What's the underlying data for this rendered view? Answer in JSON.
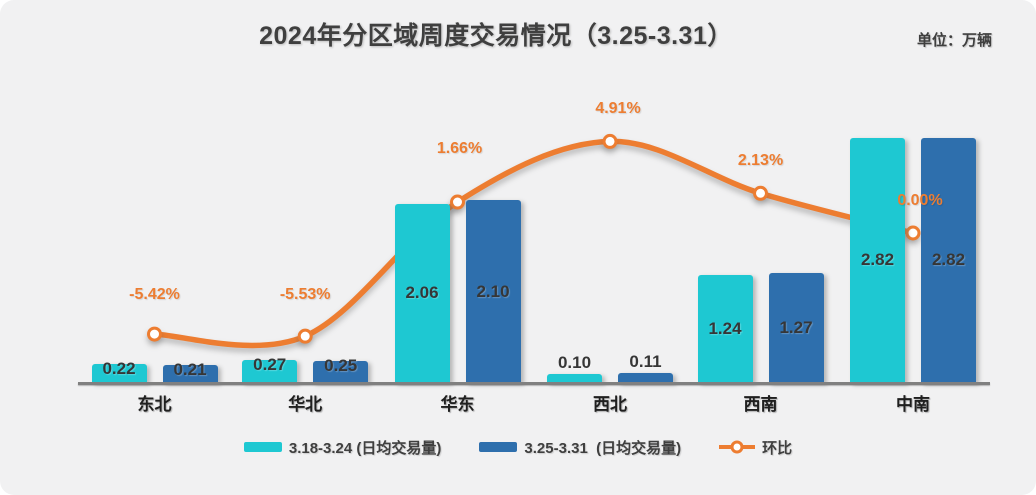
{
  "title": "2024年分区域周度交易情况（3.25-3.31）",
  "unit_label": "单位：万辆",
  "colors": {
    "background": "#F1F1F2",
    "bar_week1": "#1EC8D2",
    "bar_week2": "#2E6FAD",
    "line": "#ED7D31",
    "axis_line": "#808080",
    "title_text": "#3F3F3F",
    "value_label_text": "#363636"
  },
  "chart_data": {
    "type": "bar",
    "subtype": "grouped bars with overlaid smooth line (dual axis, pct on right)",
    "title": "2024年分区域周度交易情况（3.25-3.31）",
    "unit": "万辆",
    "categories": [
      "东北",
      "华北",
      "华东",
      "西北",
      "西南",
      "中南"
    ],
    "series": [
      {
        "name": "3.18-3.24 (日均交易量)",
        "type": "bar",
        "color": "#1EC8D2",
        "values": [
          0.22,
          0.27,
          2.06,
          0.1,
          1.24,
          2.82
        ],
        "labels": [
          "0.22",
          "0.27",
          "2.06",
          "0.10",
          "1.24",
          "2.82"
        ]
      },
      {
        "name": "3.25-3.31  (日均交易量)",
        "type": "bar",
        "color": "#2E6FAD",
        "values": [
          0.21,
          0.25,
          2.1,
          0.11,
          1.27,
          2.82
        ],
        "labels": [
          "0.21",
          "0.25",
          "2.10",
          "0.11",
          "1.27",
          "2.82"
        ]
      },
      {
        "name": "环比",
        "type": "line",
        "color": "#ED7D31",
        "marker": "circle-white-fill-orange-ring",
        "values_pct": [
          -5.42,
          -5.53,
          1.66,
          4.91,
          2.13,
          0.0
        ],
        "labels": [
          "-5.42%",
          "-5.53%",
          "1.66%",
          "4.91%",
          "2.13%",
          "0.00%"
        ]
      }
    ],
    "ylim_left": [
      0,
      3.0
    ],
    "ylim_right_pct": [
      -8,
      8
    ],
    "grid": false,
    "y_axis_visible": false,
    "legend_position": "bottom"
  }
}
